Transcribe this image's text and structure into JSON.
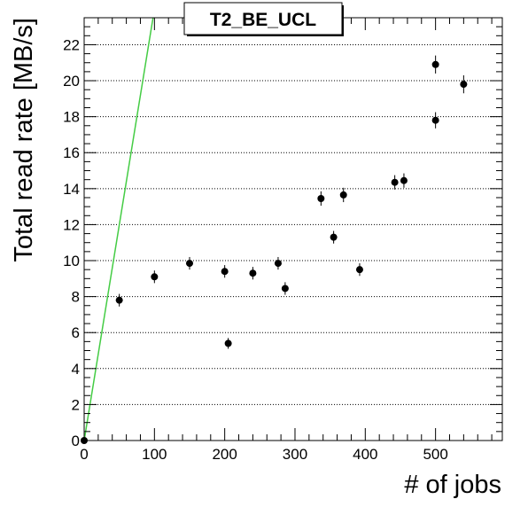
{
  "chart_data": {
    "type": "scatter",
    "title": "T2_BE_UCL",
    "xlabel": "# of jobs",
    "ylabel": "Total read rate [MB/s]",
    "xlim": [
      0,
      595
    ],
    "ylim": [
      0,
      23.5
    ],
    "xticks": [
      0,
      100,
      200,
      300,
      400,
      500
    ],
    "yticks": [
      0,
      2,
      4,
      6,
      8,
      10,
      12,
      14,
      16,
      18,
      20,
      22
    ],
    "grid": {
      "x": false,
      "y": true
    },
    "series": [
      {
        "color": "#000000",
        "points": [
          {
            "x": 0,
            "y": 0.0,
            "err": 0.0
          },
          {
            "x": 50,
            "y": 7.8,
            "err": 0.35
          },
          {
            "x": 100,
            "y": 9.1,
            "err": 0.35
          },
          {
            "x": 150,
            "y": 9.85,
            "err": 0.35
          },
          {
            "x": 200,
            "y": 9.4,
            "err": 0.35
          },
          {
            "x": 205,
            "y": 5.4,
            "err": 0.3
          },
          {
            "x": 240,
            "y": 9.3,
            "err": 0.35
          },
          {
            "x": 276,
            "y": 9.85,
            "err": 0.35
          },
          {
            "x": 286,
            "y": 8.45,
            "err": 0.35
          },
          {
            "x": 337,
            "y": 13.45,
            "err": 0.4
          },
          {
            "x": 355,
            "y": 11.3,
            "err": 0.35
          },
          {
            "x": 369,
            "y": 13.65,
            "err": 0.4
          },
          {
            "x": 392,
            "y": 9.5,
            "err": 0.35
          },
          {
            "x": 442,
            "y": 14.35,
            "err": 0.4
          },
          {
            "x": 455,
            "y": 14.45,
            "err": 0.4
          },
          {
            "x": 500,
            "y": 20.9,
            "err": 0.5
          },
          {
            "x": 500,
            "y": 17.8,
            "err": 0.45
          },
          {
            "x": 540,
            "y": 19.8,
            "err": 0.5
          }
        ]
      }
    ],
    "reference_line": {
      "color": "#44cc44",
      "points": [
        {
          "x": 0,
          "y": 0
        },
        {
          "x": 98,
          "y": 23.5
        }
      ]
    }
  }
}
